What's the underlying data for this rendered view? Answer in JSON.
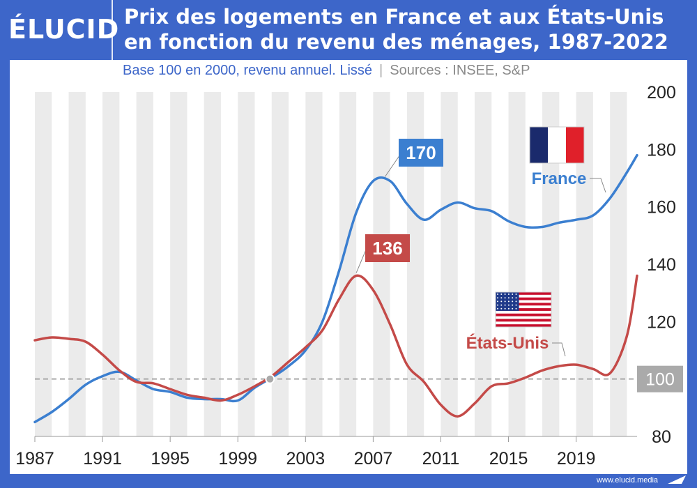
{
  "header": {
    "logo": "ÉLUCID",
    "title_line1": "Prix des logements en France et aux États-Unis",
    "title_line2": "en fonction du revenu des ménages, 1987-2022"
  },
  "subtitle": {
    "main": "Base 100 en 2000, revenu annuel. Lissé",
    "separator": "|",
    "sources": "Sources : INSEE, S&P"
  },
  "footer": {
    "url": "www.elucid.media"
  },
  "colors": {
    "brand": "#3d66c9",
    "france": "#3b7fd0",
    "usa": "#c44a48",
    "band": "#ebebeb",
    "baseline": "#aaaaaa"
  },
  "chart_data": {
    "type": "line",
    "x_tick_labels": [
      "1987",
      "1991",
      "1995",
      "1999",
      "2003",
      "2007",
      "2011",
      "2015",
      "2019"
    ],
    "x_ticks": [
      1987,
      1991,
      1995,
      1999,
      2003,
      2007,
      2011,
      2015,
      2019
    ],
    "xlim": [
      1987,
      2022.6
    ],
    "ylim": [
      80,
      200
    ],
    "y_ticks": [
      80,
      100,
      120,
      140,
      160,
      180,
      200
    ],
    "y_tick_labels": [
      "80",
      "100",
      "120",
      "140",
      "160",
      "180",
      "200"
    ],
    "y_axis_side": "right",
    "reference_line": {
      "value": 100,
      "label": "100"
    },
    "reference_point": {
      "x": 2000.9,
      "y": 100
    },
    "series": [
      {
        "name": "France",
        "color": "#3b7fd0",
        "x": [
          1987,
          1988,
          1989,
          1990,
          1991,
          1992,
          1993,
          1994,
          1995,
          1996,
          1997,
          1998,
          1999,
          2000,
          2001,
          2002,
          2003,
          2004,
          2005,
          2006,
          2007,
          2008,
          2009,
          2010,
          2011,
          2012,
          2013,
          2014,
          2015,
          2016,
          2017,
          2018,
          2019,
          2020,
          2021,
          2022,
          2022.6
        ],
        "values": [
          85,
          88.5,
          93,
          98,
          101,
          102.5,
          99.5,
          96.5,
          95.5,
          93.5,
          93,
          93,
          92.5,
          97,
          100.5,
          104.5,
          110,
          120,
          138,
          158,
          169,
          169,
          161,
          155.5,
          159,
          161.5,
          159.5,
          158.5,
          155,
          153,
          153,
          154.5,
          155.5,
          157,
          163,
          172,
          178
        ]
      },
      {
        "name": "États-Unis",
        "color": "#c44a48",
        "x": [
          1987,
          1988,
          1989,
          1990,
          1991,
          1992,
          1993,
          1994,
          1995,
          1996,
          1997,
          1998,
          1999,
          2000,
          2001,
          2002,
          2003,
          2004,
          2005,
          2006,
          2007,
          2008,
          2009,
          2010,
          2011,
          2012,
          2013,
          2014,
          2015,
          2016,
          2017,
          2018,
          2019,
          2020,
          2021,
          2022,
          2022.6
        ],
        "values": [
          113.5,
          114.5,
          114,
          113,
          108.5,
          103,
          99,
          98.5,
          96.5,
          94.5,
          93.5,
          92.5,
          94.5,
          97.5,
          101,
          106,
          111,
          117,
          128,
          136,
          131,
          119,
          105,
          99,
          91,
          87,
          91.5,
          97.5,
          98.5,
          100.5,
          103,
          104.5,
          105,
          103.5,
          102,
          115,
          136
        ]
      }
    ],
    "annotations": [
      {
        "text": "170",
        "color": "#3b7fd0",
        "x": 2007.7,
        "y": 170
      },
      {
        "text": "136",
        "color": "#c44a48",
        "x": 2006,
        "y": 136
      }
    ],
    "series_labels": [
      {
        "text": "France",
        "color": "#3b7fd0",
        "flag": "france-flag"
      },
      {
        "text": "États-Unis",
        "color": "#c44a48",
        "flag": "usa-flag"
      }
    ]
  }
}
